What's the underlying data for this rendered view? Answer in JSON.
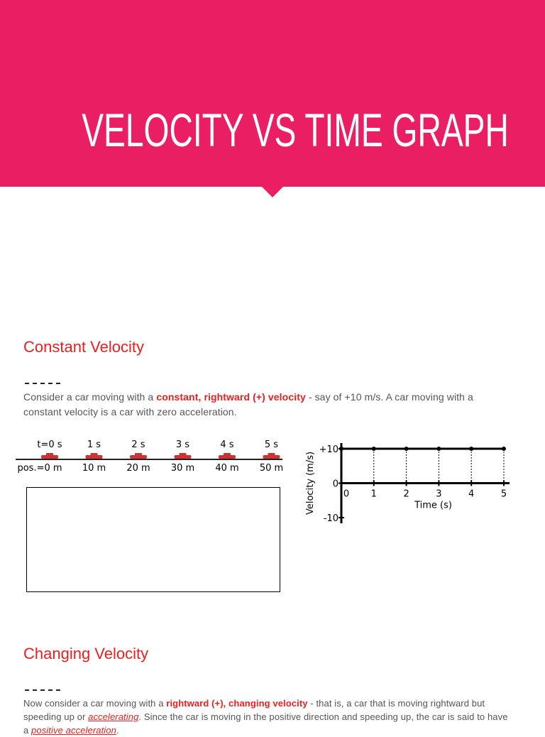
{
  "header": {
    "title": "VELOCITY VS TIME GRAPH"
  },
  "sections": [
    {
      "heading": "Constant Velocity",
      "paragraph": [
        {
          "text": "Consider a car moving with a ",
          "style": "plain"
        },
        {
          "text": "constant, rightward (+) velocity",
          "style": "strong"
        },
        {
          "text": " - say of +10 m/s. A car moving with a constant velocity is a car with zero acceleration.",
          "style": "plain"
        }
      ]
    },
    {
      "heading": "Changing Velocity",
      "paragraph": [
        {
          "text": "Now consider a car moving with a ",
          "style": "plain"
        },
        {
          "text": "rightward (+), changing velocity",
          "style": "strong"
        },
        {
          "text": " - that is, a car that is moving rightward but speeding up or ",
          "style": "plain"
        },
        {
          "text": "accelerating",
          "style": "link"
        },
        {
          "text": ". Since the car is moving in the positive direction and speeding up, the car is said to have a ",
          "style": "plain"
        },
        {
          "text": "positive acceleration",
          "style": "link"
        },
        {
          "text": ".",
          "style": "plain"
        }
      ]
    }
  ],
  "car_figure": {
    "times": [
      "t=0 s",
      "1 s",
      "2 s",
      "3 s",
      "4 s",
      "5 s"
    ],
    "positions": [
      "pos.=0 m",
      "10 m",
      "20 m",
      "30 m",
      "40 m",
      "50 m"
    ]
  },
  "graph": {
    "x_label": "Time (s)",
    "y_label": "Velocity (m/s)",
    "x": [
      0,
      1,
      2,
      3,
      4,
      5
    ],
    "values": [
      10,
      10,
      10,
      10,
      10,
      10
    ],
    "xlim": [
      0,
      5
    ],
    "ylim": [
      -10,
      10
    ],
    "xticks": [
      0,
      1,
      2,
      3,
      4,
      5
    ],
    "yticks": [
      {
        "value": 10,
        "label": "+10"
      },
      0,
      {
        "value": -10,
        "label": "-10"
      }
    ]
  }
}
